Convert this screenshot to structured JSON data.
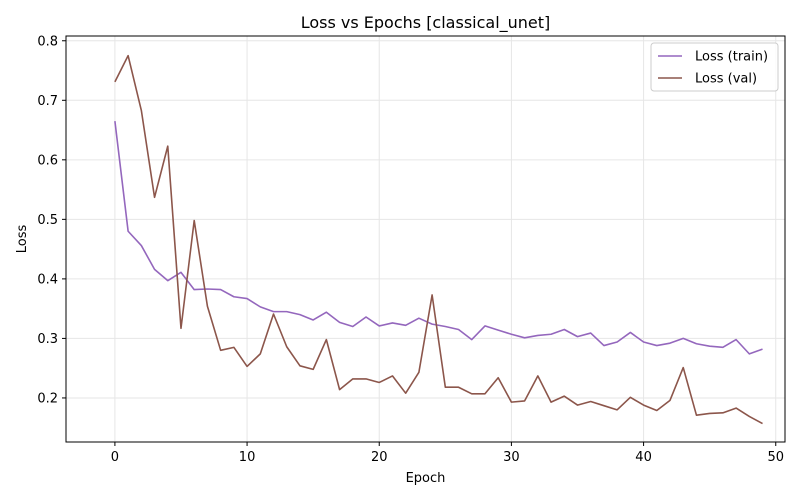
{
  "chart_data": {
    "type": "line",
    "title": "Loss vs Epochs [classical_unet]",
    "xlabel": "Epoch",
    "ylabel": "Loss",
    "xlim": [
      -3.7,
      50.7
    ],
    "ylim": [
      0.126,
      0.808
    ],
    "xticks": [
      0,
      10,
      20,
      30,
      40,
      50
    ],
    "yticks": [
      0.2,
      0.3,
      0.4,
      0.5,
      0.6,
      0.7,
      0.8
    ],
    "grid": true,
    "legend_position": "top-right",
    "x": [
      0,
      1,
      2,
      3,
      4,
      5,
      6,
      7,
      8,
      9,
      10,
      11,
      12,
      13,
      14,
      15,
      16,
      17,
      18,
      19,
      20,
      21,
      22,
      23,
      24,
      25,
      26,
      27,
      28,
      29,
      30,
      31,
      32,
      33,
      34,
      35,
      36,
      37,
      38,
      39,
      40,
      41,
      42,
      43,
      44,
      45,
      46,
      47,
      48,
      49
    ],
    "series": [
      {
        "name": "Loss (train)",
        "color": "#9467bd",
        "values": [
          0.665,
          0.48,
          0.456,
          0.416,
          0.397,
          0.411,
          0.382,
          0.383,
          0.382,
          0.37,
          0.367,
          0.353,
          0.345,
          0.345,
          0.34,
          0.331,
          0.344,
          0.327,
          0.32,
          0.336,
          0.321,
          0.326,
          0.322,
          0.334,
          0.324,
          0.32,
          0.315,
          0.298,
          0.321,
          0.314,
          0.307,
          0.301,
          0.305,
          0.307,
          0.315,
          0.303,
          0.309,
          0.288,
          0.294,
          0.31,
          0.294,
          0.288,
          0.292,
          0.3,
          0.291,
          0.287,
          0.285,
          0.298,
          0.274,
          0.282
        ]
      },
      {
        "name": "Loss (val)",
        "color": "#8c564b",
        "values": [
          0.731,
          0.775,
          0.683,
          0.537,
          0.623,
          0.317,
          0.498,
          0.354,
          0.28,
          0.285,
          0.253,
          0.274,
          0.341,
          0.286,
          0.254,
          0.248,
          0.298,
          0.214,
          0.232,
          0.232,
          0.226,
          0.237,
          0.208,
          0.243,
          0.373,
          0.218,
          0.218,
          0.207,
          0.207,
          0.234,
          0.193,
          0.195,
          0.237,
          0.193,
          0.203,
          0.188,
          0.194,
          0.187,
          0.18,
          0.201,
          0.188,
          0.179,
          0.196,
          0.251,
          0.171,
          0.174,
          0.175,
          0.183,
          0.169,
          0.157
        ]
      }
    ]
  }
}
